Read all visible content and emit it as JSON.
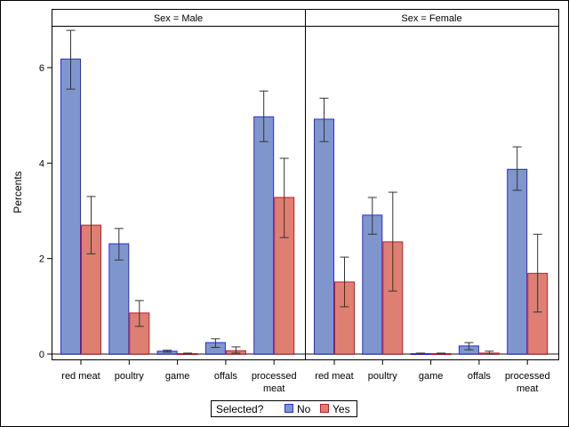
{
  "chart_data": {
    "type": "bar",
    "ylabel": "Percents",
    "ylim": [
      0,
      6.9
    ],
    "yticks": [
      0,
      2,
      4,
      6
    ],
    "grid": false,
    "legend": {
      "title": "Selected?",
      "placement": "bottom",
      "entries": [
        "No",
        "Yes"
      ]
    },
    "colors": {
      "No": "#7f96cc",
      "No_edge": "#2b2bd6",
      "Yes": "#de7f72",
      "Yes_edge": "#c0192a"
    },
    "categories": [
      "red meat",
      "poultry",
      "game",
      "offals",
      "processed meat"
    ],
    "panels": [
      {
        "title": "Sex = Male",
        "series": [
          {
            "name": "No",
            "values": [
              6.18,
              2.31,
              0.06,
              0.24,
              4.97
            ],
            "lower": [
              5.55,
              1.97,
              0.04,
              0.14,
              4.45
            ],
            "upper": [
              6.78,
              2.63,
              0.08,
              0.32,
              5.51
            ]
          },
          {
            "name": "Yes",
            "values": [
              2.7,
              0.86,
              0.01,
              0.07,
              3.28
            ],
            "lower": [
              2.1,
              0.58,
              0.0,
              0.02,
              2.44
            ],
            "upper": [
              3.3,
              1.12,
              0.02,
              0.15,
              4.1
            ]
          }
        ]
      },
      {
        "title": "Sex = Female",
        "series": [
          {
            "name": "No",
            "values": [
              4.92,
              2.91,
              0.01,
              0.17,
              3.87
            ],
            "lower": [
              4.45,
              2.51,
              0.0,
              0.09,
              3.43
            ],
            "upper": [
              5.36,
              3.28,
              0.02,
              0.24,
              4.34
            ]
          },
          {
            "name": "Yes",
            "values": [
              1.51,
              2.35,
              0.01,
              0.02,
              1.69
            ],
            "lower": [
              0.99,
              1.32,
              0.0,
              0.0,
              0.88
            ],
            "upper": [
              2.03,
              3.39,
              0.02,
              0.06,
              2.51
            ]
          }
        ]
      }
    ]
  }
}
